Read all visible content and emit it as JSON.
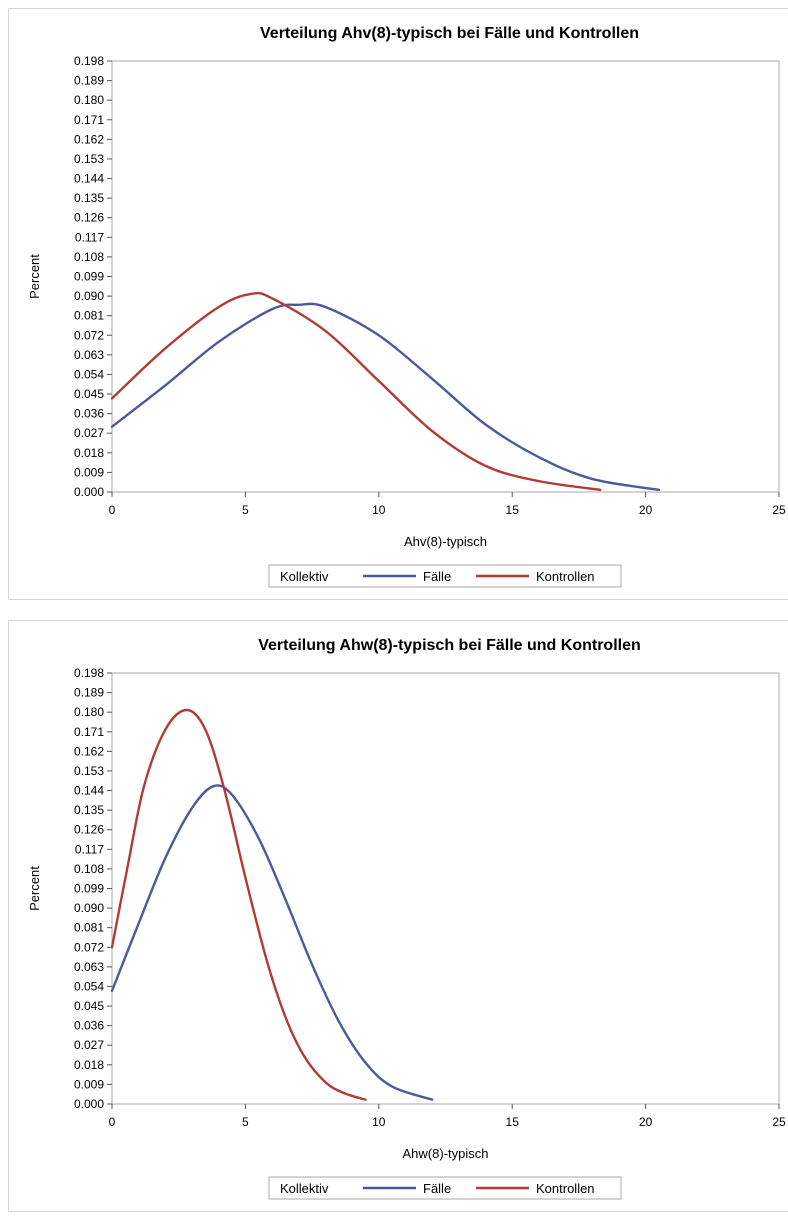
{
  "chart_data": [
    {
      "type": "line",
      "title": "Verteilung Ahv(8)-typisch bei Fälle und Kontrollen",
      "xlabel": "Ahv(8)-typisch",
      "ylabel": "Percent",
      "xlim": [
        0,
        25
      ],
      "ylim": [
        0,
        0.198
      ],
      "xticks": [
        "0",
        "5",
        "10",
        "15",
        "20",
        "25"
      ],
      "yticks": [
        "0.000",
        "0.009",
        "0.018",
        "0.027",
        "0.036",
        "0.045",
        "0.054",
        "0.063",
        "0.072",
        "0.081",
        "0.090",
        "0.099",
        "0.108",
        "0.117",
        "0.126",
        "0.135",
        "0.144",
        "0.153",
        "0.162",
        "0.171",
        "0.180",
        "0.189",
        "0.198"
      ],
      "grid": false,
      "legend": {
        "title": "Kollektiv",
        "position": "bottom"
      },
      "series": [
        {
          "name": "Fälle",
          "color": "#4b5a9c",
          "x": [
            0,
            2,
            4,
            6,
            7,
            8,
            10,
            12,
            14,
            16,
            18,
            20.5
          ],
          "y": [
            0.03,
            0.049,
            0.069,
            0.084,
            0.086,
            0.085,
            0.072,
            0.052,
            0.031,
            0.016,
            0.006,
            0.001
          ]
        },
        {
          "name": "Kontrollen",
          "color": "#b03c36",
          "x": [
            0,
            2,
            4,
            5.2,
            6,
            8,
            10,
            12,
            14,
            16,
            18.3
          ],
          "y": [
            0.043,
            0.066,
            0.085,
            0.091,
            0.089,
            0.074,
            0.051,
            0.028,
            0.012,
            0.005,
            0.001
          ]
        }
      ]
    },
    {
      "type": "line",
      "title": "Verteilung Ahw(8)-typisch bei Fälle und Kontrollen",
      "xlabel": "Ahw(8)-typisch",
      "ylabel": "Percent",
      "xlim": [
        0,
        25
      ],
      "ylim": [
        0,
        0.198
      ],
      "xticks": [
        "0",
        "5",
        "10",
        "15",
        "20",
        "25"
      ],
      "yticks": [
        "0.000",
        "0.009",
        "0.018",
        "0.027",
        "0.036",
        "0.045",
        "0.054",
        "0.063",
        "0.072",
        "0.081",
        "0.090",
        "0.099",
        "0.108",
        "0.117",
        "0.126",
        "0.135",
        "0.144",
        "0.153",
        "0.162",
        "0.171",
        "0.180",
        "0.189",
        "0.198"
      ],
      "grid": false,
      "legend": {
        "title": "Kollektiv",
        "position": "bottom"
      },
      "series": [
        {
          "name": "Fälle",
          "color": "#4b5a9c",
          "x": [
            0,
            1,
            2,
            3,
            3.8,
            4.5,
            5.5,
            6.5,
            7.5,
            8.5,
            9.5,
            10.5,
            12
          ],
          "y": [
            0.052,
            0.083,
            0.113,
            0.136,
            0.146,
            0.142,
            0.122,
            0.094,
            0.064,
            0.038,
            0.019,
            0.008,
            0.002
          ]
        },
        {
          "name": "Kontrollen",
          "color": "#b03c36",
          "x": [
            0,
            0.6,
            1.2,
            2,
            2.8,
            3.5,
            4.2,
            5,
            5.8,
            6.5,
            7.2,
            8,
            8.7,
            9.5
          ],
          "y": [
            0.072,
            0.11,
            0.146,
            0.172,
            0.181,
            0.172,
            0.145,
            0.104,
            0.066,
            0.04,
            0.022,
            0.01,
            0.005,
            0.002
          ]
        }
      ]
    }
  ]
}
